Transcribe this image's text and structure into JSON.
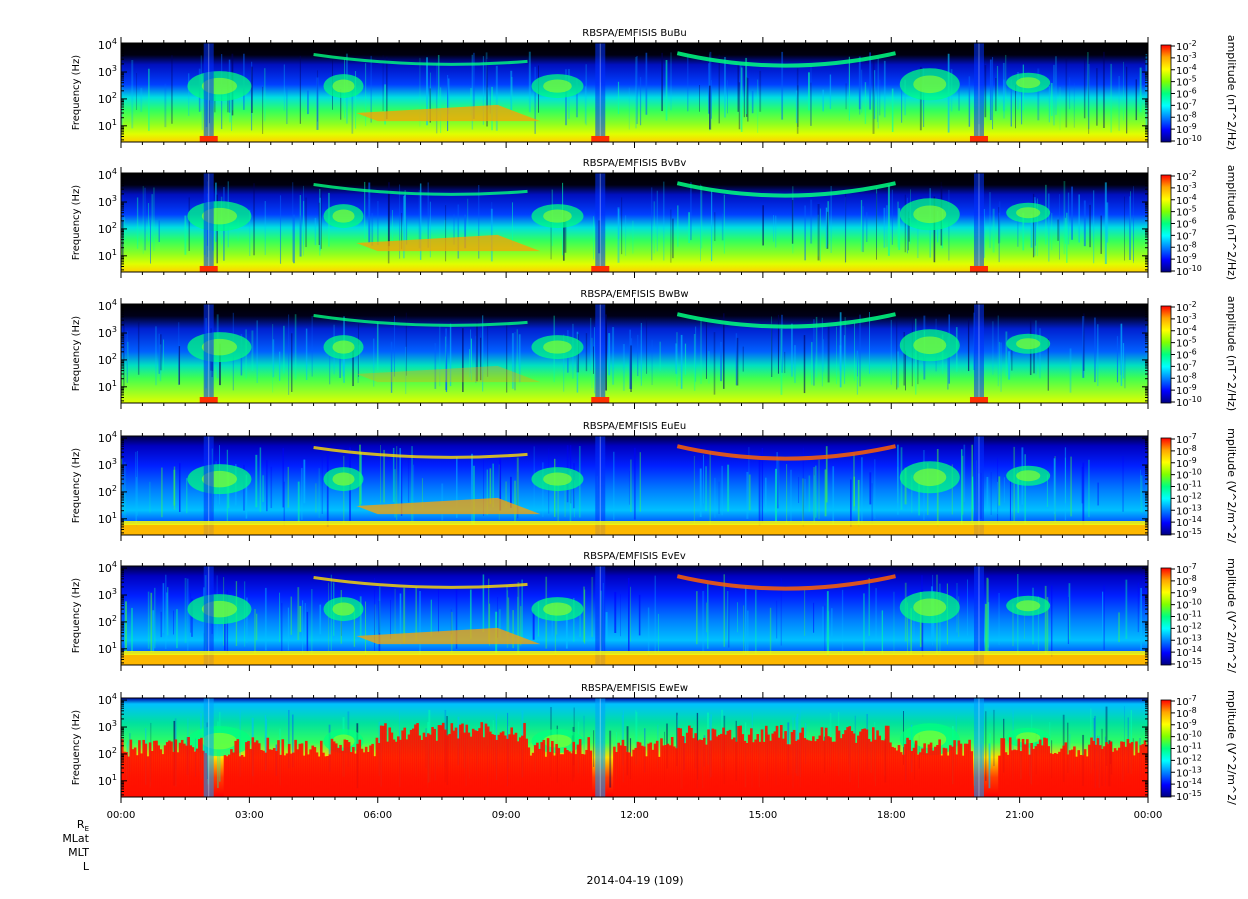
{
  "chart_data": {
    "type": "heatmap",
    "panels": [
      {
        "title": "RBSPA/EMFISIS  BuBu",
        "ylabel": "Frequency (Hz)",
        "cbar_label": "amplitude (nT^2/Hz)",
        "cbar_exponents": [
          -2,
          -3,
          -4,
          -5,
          -6,
          -7,
          -8,
          -9,
          -10
        ],
        "kind": "B"
      },
      {
        "title": "RBSPA/EMFISIS  BvBv",
        "ylabel": "Frequency (Hz)",
        "cbar_label": "amplitude (nT^2/Hz)",
        "cbar_exponents": [
          -2,
          -3,
          -4,
          -5,
          -6,
          -7,
          -8,
          -9,
          -10
        ],
        "kind": "B"
      },
      {
        "title": "RBSPA/EMFISIS  BwBw",
        "ylabel": "Frequency (Hz)",
        "cbar_label": "amplitude (nT^2/Hz)",
        "cbar_exponents": [
          -2,
          -3,
          -4,
          -5,
          -6,
          -7,
          -8,
          -9,
          -10
        ],
        "kind": "Bw"
      },
      {
        "title": "RBSPA/EMFISIS  EuEu",
        "ylabel": "Frequency (Hz)",
        "cbar_label": "mplitude (V^2/m^2/",
        "cbar_exponents": [
          -7,
          -8,
          -9,
          -10,
          -11,
          -12,
          -13,
          -14,
          -15
        ],
        "kind": "E"
      },
      {
        "title": "RBSPA/EMFISIS  EvEv",
        "ylabel": "Frequency (Hz)",
        "cbar_label": "mplitude (V^2/m^2/",
        "cbar_exponents": [
          -7,
          -8,
          -9,
          -10,
          -11,
          -12,
          -13,
          -14,
          -15
        ],
        "kind": "E"
      },
      {
        "title": "RBSPA/EMFISIS  EwEw",
        "ylabel": "Frequency (Hz)",
        "cbar_label": "mplitude (V^2/m^2/",
        "cbar_exponents": [
          -7,
          -8,
          -9,
          -10,
          -11,
          -12,
          -13,
          -14,
          -15
        ],
        "kind": "Ew"
      }
    ],
    "y_scale": "log",
    "ylim_hz": [
      2.5,
      12000
    ],
    "y_ticks": [
      {
        "base": "10",
        "exp": "1",
        "value": 10
      },
      {
        "base": "10",
        "exp": "2",
        "value": 100
      },
      {
        "base": "10",
        "exp": "3",
        "value": 1000
      },
      {
        "base": "10",
        "exp": "4",
        "value": 10000
      }
    ],
    "x_ticks": [
      "00:00",
      "03:00",
      "06:00",
      "09:00",
      "12:00",
      "15:00",
      "18:00",
      "21:00",
      "00:00"
    ],
    "xlim_hours": [
      0,
      24
    ],
    "ephemeris_labels": [
      "R",
      "MLat",
      "MLT",
      "L"
    ],
    "ephemeris_r_subscript": "E",
    "date_label": "2014-04-19 (109)",
    "colormap": [
      "#000080",
      "#0000ff",
      "#0080ff",
      "#00ffff",
      "#00ff80",
      "#80ff00",
      "#ffff00",
      "#ffa500",
      "#ff0000"
    ]
  }
}
